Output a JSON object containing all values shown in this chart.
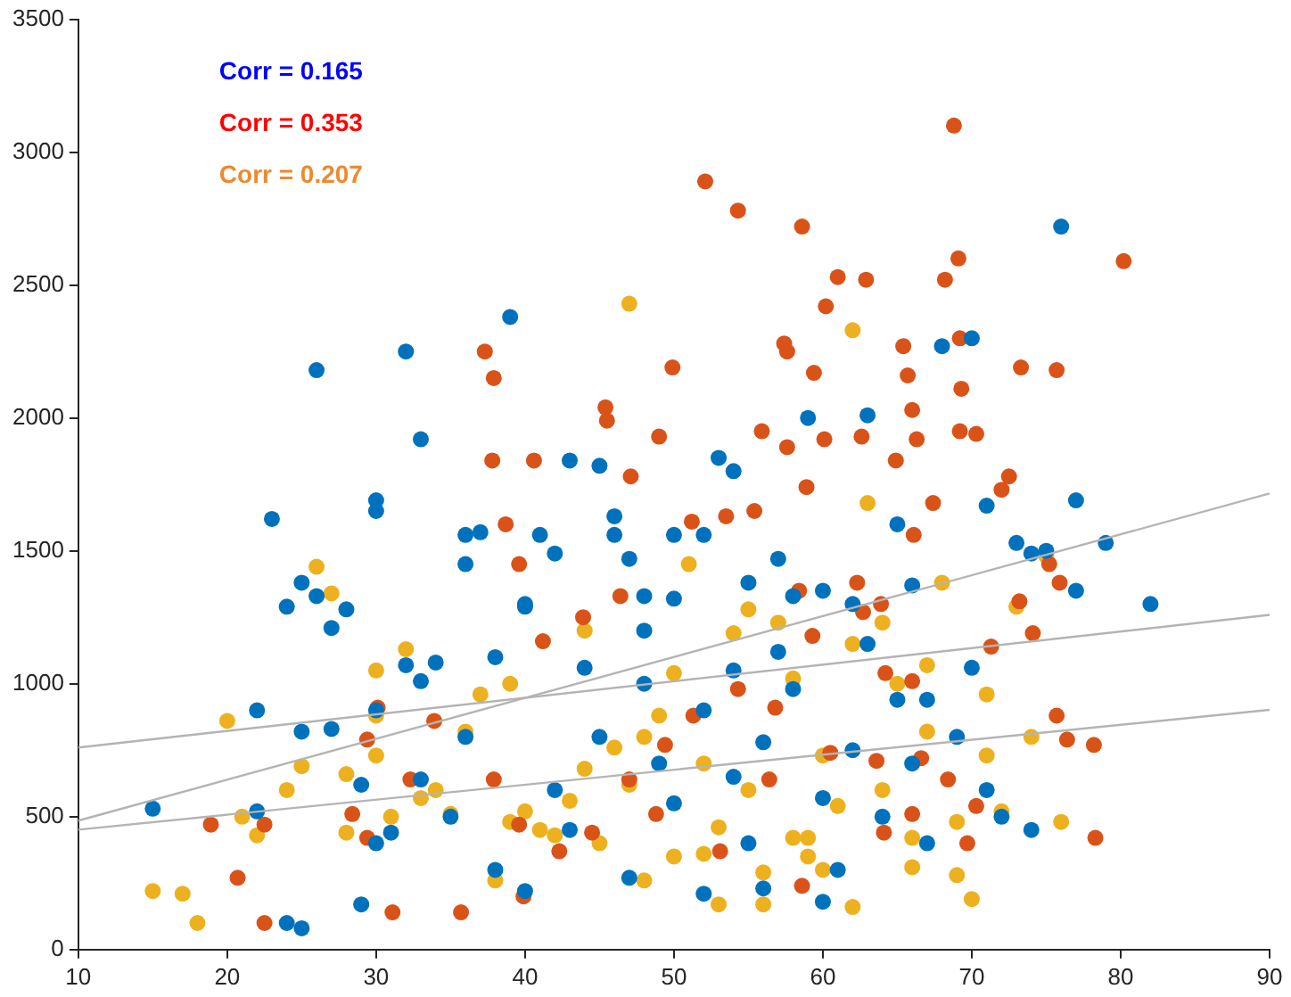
{
  "chart_data": {
    "type": "scatter",
    "xlim": [
      10,
      90
    ],
    "xticks": [
      10,
      20,
      30,
      40,
      50,
      60,
      70,
      80,
      90
    ],
    "ylim": [
      0,
      3500
    ],
    "yticks": [
      0,
      500,
      1000,
      1500,
      2000,
      2500,
      3000,
      3500
    ],
    "grid": false,
    "legend": false,
    "marker": "circle",
    "annotations": [
      "Corr = 0.165",
      "Corr = 0.353",
      "Corr = 0.207"
    ],
    "series": [
      {
        "color": "#0072bd",
        "x": [
          15,
          22,
          23,
          24,
          25,
          26,
          27,
          26,
          28,
          30,
          30,
          32,
          33,
          32,
          33,
          34,
          36,
          36,
          37,
          38,
          39,
          40,
          40,
          41,
          42,
          43,
          45,
          46,
          46,
          47,
          48,
          48,
          50,
          50,
          52,
          53,
          54,
          55,
          57,
          58,
          59,
          60,
          62,
          63,
          65,
          66,
          68,
          70,
          71,
          73,
          74,
          75,
          76,
          77,
          77,
          79,
          82,
          22,
          25,
          27,
          29,
          30,
          30,
          31,
          33,
          35,
          36,
          38,
          40,
          42,
          43,
          45,
          47,
          49,
          50,
          52,
          54,
          55,
          56,
          58,
          60,
          61,
          62,
          63,
          64,
          65,
          66,
          67,
          69,
          71,
          72,
          74,
          24,
          25,
          29,
          52,
          56,
          60,
          44,
          48,
          54,
          57,
          67,
          70
        ],
        "values": [
          530,
          520,
          1620,
          1290,
          1380,
          1330,
          1210,
          2180,
          1280,
          1650,
          1690,
          2250,
          1920,
          1070,
          1010,
          1080,
          1450,
          1560,
          1570,
          1100,
          2380,
          1290,
          1300,
          1560,
          1490,
          1840,
          1820,
          1560,
          1630,
          1470,
          1330,
          1200,
          1320,
          1560,
          1560,
          1850,
          1800,
          1380,
          1470,
          1330,
          2000,
          1350,
          1300,
          2010,
          1600,
          1370,
          2270,
          2300,
          1670,
          1530,
          1490,
          1500,
          2720,
          1690,
          1350,
          1530,
          1300,
          900,
          820,
          830,
          620,
          900,
          400,
          440,
          640,
          500,
          800,
          300,
          220,
          600,
          450,
          800,
          270,
          700,
          550,
          900,
          650,
          400,
          780,
          980,
          570,
          300,
          750,
          1150,
          500,
          940,
          700,
          400,
          800,
          600,
          500,
          450,
          100,
          80,
          170,
          210,
          230,
          180,
          1060,
          1000,
          1050,
          1120,
          940,
          1060
        ]
      },
      {
        "color": "#d95319",
        "x": [
          52.1,
          54.3,
          58.6,
          61,
          62.9,
          60.2,
          68.2,
          68.8,
          69.1,
          80.2,
          69.2,
          73.3,
          75.7,
          57.4,
          57.6,
          49.9,
          45.4,
          45.5,
          49,
          47.1,
          59.4,
          65.4,
          69.3,
          65.7,
          66,
          69.2,
          70.3,
          64.9,
          66.3,
          72,
          72.5,
          67.4,
          58.9,
          57.6,
          60.1,
          62.6,
          55.9,
          53.5,
          51.2,
          55.4,
          37.3,
          37.9,
          37.8,
          40.6,
          38.7,
          39.6,
          43.9,
          46.4,
          75.2,
          75.9,
          74.1,
          75.7,
          76.4,
          78.2,
          78.3,
          69.7,
          63.9,
          62.7,
          66.1,
          58.4,
          59.3,
          62.3,
          64.2,
          60.5,
          63.6,
          66.6,
          68.4,
          56.8,
          54.3,
          51.3,
          49.4,
          47,
          44.5,
          42.3,
          39.9,
          35.7,
          31.1,
          29.4,
          30.1,
          33.9,
          37.9,
          39.6,
          28.4,
          20.7,
          18.9,
          22.5,
          22.5,
          29.4,
          41.2,
          32.3,
          48.8,
          53.1,
          56.4,
          66,
          71.3,
          73.2,
          58.6,
          66,
          70.3,
          64.1
        ],
        "values": [
          2890,
          2780,
          2720,
          2530,
          2520,
          2420,
          2520,
          3100,
          2600,
          2590,
          2300,
          2190,
          2180,
          2280,
          2250,
          2190,
          2040,
          1990,
          1930,
          1780,
          2170,
          2270,
          2110,
          2160,
          2030,
          1950,
          1940,
          1840,
          1920,
          1730,
          1780,
          1680,
          1740,
          1890,
          1920,
          1930,
          1950,
          1630,
          1610,
          1650,
          2250,
          2150,
          1840,
          1840,
          1600,
          1450,
          1250,
          1330,
          1450,
          1380,
          1190,
          880,
          790,
          770,
          420,
          400,
          1300,
          1270,
          1560,
          1350,
          1180,
          1380,
          1040,
          740,
          710,
          720,
          640,
          910,
          980,
          880,
          770,
          640,
          440,
          370,
          200,
          140,
          140,
          790,
          910,
          860,
          640,
          470,
          510,
          270,
          470,
          470,
          100,
          420,
          1160,
          640,
          510,
          370,
          640,
          1010,
          1140,
          1310,
          240,
          510,
          540,
          440
        ]
      },
      {
        "color": "#edb120",
        "x": [
          15,
          17,
          18,
          20,
          21,
          22,
          24,
          25,
          26,
          27,
          28,
          28,
          30,
          30,
          30,
          31,
          32,
          33,
          34,
          35,
          36,
          37,
          38,
          39,
          40,
          41,
          42,
          43,
          44,
          45,
          46,
          47,
          47,
          48,
          49,
          50,
          51,
          52,
          53,
          54,
          55,
          56,
          57,
          58,
          59,
          60,
          61,
          62,
          62,
          63,
          64,
          65,
          66,
          67,
          68,
          69,
          70,
          71,
          72,
          73,
          74,
          75,
          76,
          48,
          53,
          56,
          60,
          62,
          66,
          69,
          39,
          44,
          50,
          55,
          58,
          64,
          67,
          71,
          52,
          59
        ],
        "values": [
          220,
          210,
          100,
          860,
          500,
          430,
          600,
          690,
          1440,
          1340,
          660,
          440,
          880,
          730,
          1050,
          500,
          1130,
          570,
          600,
          510,
          820,
          960,
          260,
          480,
          520,
          450,
          430,
          560,
          680,
          400,
          760,
          2430,
          620,
          800,
          880,
          350,
          1450,
          360,
          460,
          1190,
          600,
          170,
          1230,
          420,
          350,
          730,
          540,
          2330,
          1150,
          1680,
          600,
          1000,
          420,
          820,
          1380,
          480,
          190,
          960,
          520,
          1290,
          800,
          1480,
          480,
          260,
          170,
          290,
          300,
          160,
          310,
          280,
          1000,
          1200,
          1040,
          1280,
          1020,
          1230,
          1070,
          730,
          700,
          420
        ]
      },
      {
        "type": "line",
        "marker": "none",
        "color": "#b4b4b4",
        "x": [
          10,
          90
        ],
        "values": [
          485,
          1716
        ]
      },
      {
        "type": "line",
        "marker": "none",
        "color": "#b4b4b4",
        "x": [
          10,
          90
        ],
        "values": [
          760,
          1259
        ]
      },
      {
        "type": "line",
        "marker": "none",
        "color": "#b4b4b4",
        "x": [
          10,
          90
        ],
        "values": [
          451,
          902
        ]
      }
    ]
  }
}
